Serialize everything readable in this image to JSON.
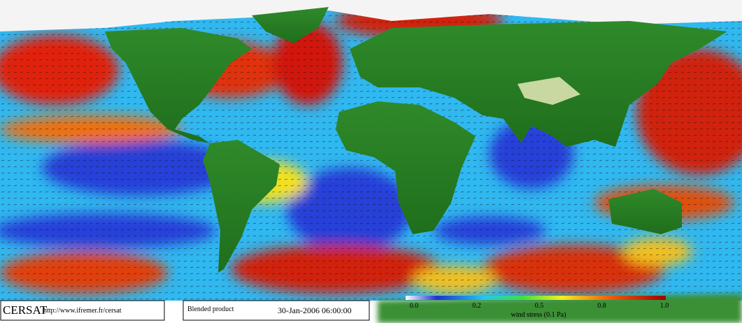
{
  "header": {
    "logo": "CERSAT",
    "url": "http://www.ifremer.fr/cersat"
  },
  "product": {
    "name": "Blended product",
    "date": "30-Jan-2006 06:00:00"
  },
  "legend": {
    "ticks": [
      "0.0",
      "0.2",
      "0.5",
      "0.8",
      "1.0"
    ],
    "label": "wind stress (0.1 Pa)"
  }
}
